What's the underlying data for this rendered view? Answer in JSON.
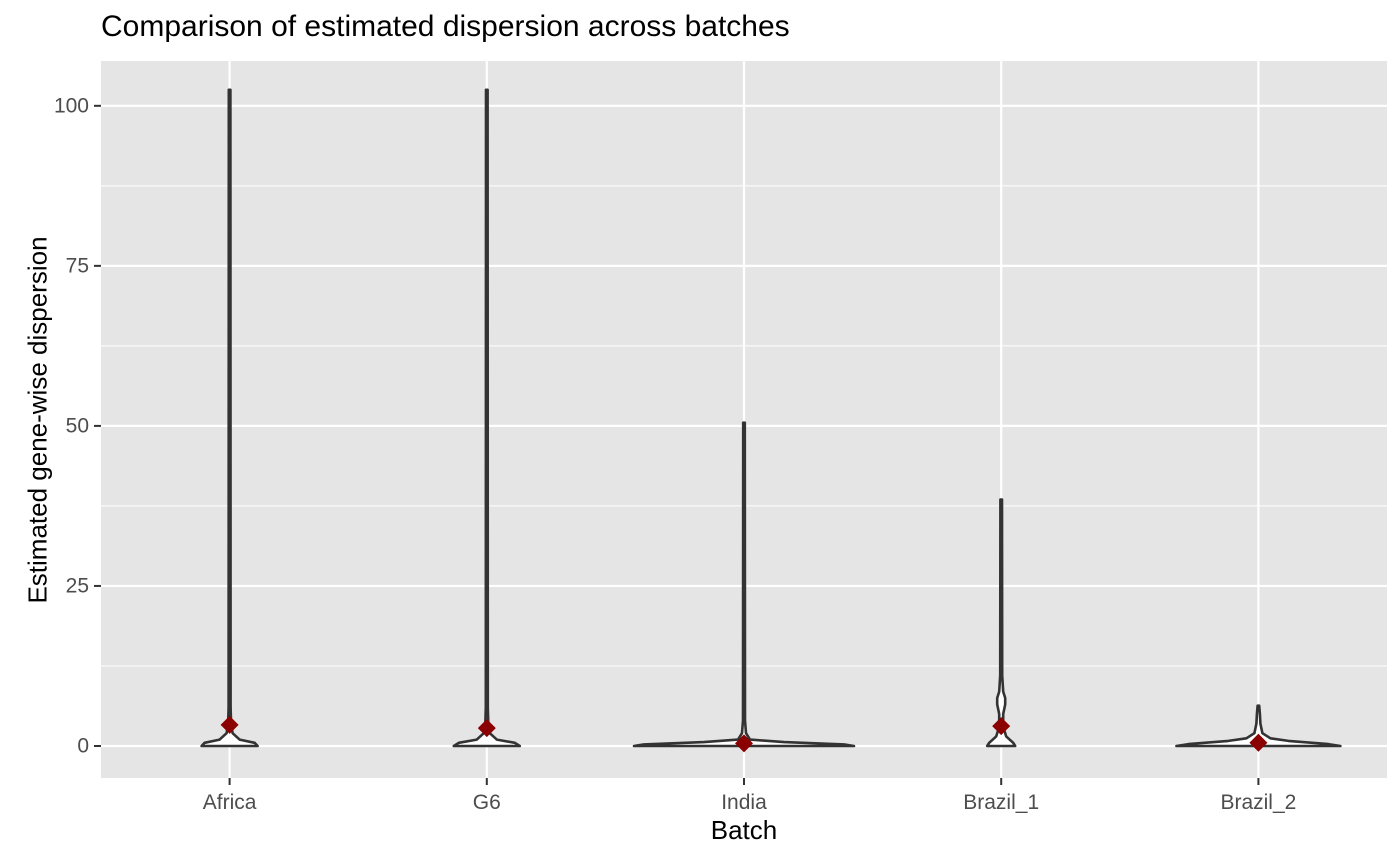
{
  "chart_data": {
    "type": "violin",
    "title": "Comparison of estimated dispersion across batches",
    "xlabel": "Batch",
    "ylabel": "Estimated gene-wise dispersion",
    "categories": [
      "Africa",
      "G6",
      "India",
      "Brazil_1",
      "Brazil_2"
    ],
    "ylim": [
      -5,
      107
    ],
    "yticks": [
      0,
      25,
      50,
      75,
      100
    ],
    "ytick_labels": [
      "0",
      "25",
      "50",
      "75",
      "100"
    ],
    "grid": true,
    "legend": "none",
    "batches": [
      {
        "name": "Africa",
        "min": 0,
        "max": 102.5,
        "mean": 3.3
      },
      {
        "name": "G6",
        "min": 0,
        "max": 102.5,
        "mean": 2.8
      },
      {
        "name": "India",
        "min": 0,
        "max": 50.5,
        "mean": 0.4
      },
      {
        "name": "Brazil_1",
        "min": 0,
        "max": 38.5,
        "mean": 3.1
      },
      {
        "name": "Brazil_2",
        "min": 0,
        "max": 6.3,
        "mean": 0.5
      }
    ],
    "colors": {
      "panel": "#e5e5e5",
      "grid": "#ffffff",
      "violin_outline": "#333333",
      "mean_marker": "#8b0000"
    }
  }
}
